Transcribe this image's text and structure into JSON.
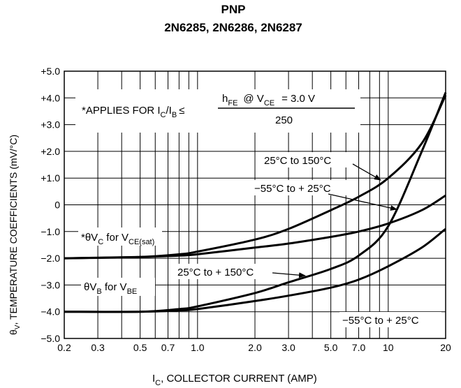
{
  "header": {
    "title_line1": "PNP",
    "title_line2": "2N6285, 2N6286, 2N6287"
  },
  "chart_data": {
    "type": "line",
    "title": "PNP 2N6285, 2N6286, 2N6287",
    "xlabel": "I_C, COLLECTOR CURRENT (AMP)",
    "ylabel": "θ_V, TEMPERATURE COEFFICIENTS (mV/°C)",
    "x_scale": "log",
    "xlim": [
      0.2,
      20
    ],
    "ylim": [
      -5.0,
      5.0
    ],
    "x_ticks": [
      0.2,
      0.3,
      0.5,
      0.7,
      1.0,
      2.0,
      3.0,
      5.0,
      7.0,
      10,
      20
    ],
    "x_tick_labels": [
      "0.2",
      "0.3",
      "0.5",
      "0.7",
      "1.0",
      "2.0",
      "3.0",
      "5.0",
      "7.0",
      "10",
      "20"
    ],
    "y_ticks": [
      5,
      4,
      3,
      2,
      1,
      0,
      -1,
      -2,
      -3,
      -4,
      -5
    ],
    "y_tick_labels": [
      "+5.0",
      "+4.0",
      "+3.0",
      "+2.0",
      "+1.0",
      "0",
      "−1.0",
      "−2.0",
      "−3.0",
      "−4.0",
      "−5.0"
    ],
    "grid": true,
    "series": [
      {
        "group": "θV_C for V_CE(sat)",
        "temp_label": "25°C to 150°C",
        "x": [
          0.2,
          0.5,
          0.8,
          1.0,
          2.0,
          3.0,
          5.0,
          7.0,
          10,
          15,
          20
        ],
        "y": [
          -2.0,
          -1.95,
          -1.85,
          -1.75,
          -1.3,
          -0.9,
          -0.2,
          0.3,
          1.0,
          2.3,
          4.1
        ]
      },
      {
        "group": "θV_C for V_CE(sat)",
        "temp_label": "−55°C to + 25°C",
        "x": [
          0.2,
          0.5,
          0.8,
          1.0,
          2.0,
          3.0,
          5.0,
          7.0,
          10,
          15,
          20
        ],
        "y": [
          -2.0,
          -1.95,
          -1.9,
          -1.85,
          -1.6,
          -1.45,
          -1.2,
          -1.0,
          -0.7,
          -0.2,
          0.35
        ]
      },
      {
        "group": "θV_B for V_BE",
        "temp_label": "25°C to + 150°C",
        "x": [
          0.2,
          0.5,
          0.8,
          1.0,
          2.0,
          3.0,
          5.0,
          7.0,
          10,
          15,
          20
        ],
        "y": [
          -4.0,
          -4.0,
          -3.9,
          -3.8,
          -3.3,
          -2.9,
          -2.4,
          -1.9,
          -0.8,
          2.0,
          4.2
        ]
      },
      {
        "group": "θV_B for V_BE",
        "temp_label": "−55°C to + 25°C",
        "x": [
          0.2,
          0.5,
          0.8,
          1.0,
          2.0,
          3.0,
          5.0,
          7.0,
          10,
          15,
          20
        ],
        "y": [
          -4.0,
          -4.0,
          -3.95,
          -3.9,
          -3.6,
          -3.4,
          -3.1,
          -2.8,
          -2.3,
          -1.6,
          -0.9
        ]
      }
    ],
    "annotations": {
      "note_prefix": "*APPLIES FOR I",
      "note_ic_sub": "C",
      "note_slash": "/I",
      "note_ib_sub": "B",
      "note_le": "≤",
      "note_numerator": "h",
      "note_hfe_sub": "FE",
      "note_at": "@ V",
      "note_vce_sub": "CE",
      "note_eq": "= 3.0 V",
      "note_denominator": "250",
      "vc_label_main": "*θV",
      "vc_label_sub": "C",
      "vc_label_for": " for V",
      "vc_label_for_sub": "CE(sat)",
      "vb_label_main": "θV",
      "vb_label_sub": "B",
      "vb_label_for": " for V",
      "vb_label_for_sub": "BE",
      "temp_1": "25°C to 150°C",
      "temp_2": "−55°C to + 25°C",
      "temp_3": "25°C to + 150°C",
      "temp_4": "−55°C to + 25°C"
    },
    "axis_label_parts": {
      "x_main": "I",
      "x_sub": "C",
      "x_rest": ", COLLECTOR CURRENT (AMP)",
      "y_main": "θ",
      "y_sub": "V",
      "y_rest": ", TEMPERATURE COEFFICIENTS (mV/°C)"
    }
  }
}
